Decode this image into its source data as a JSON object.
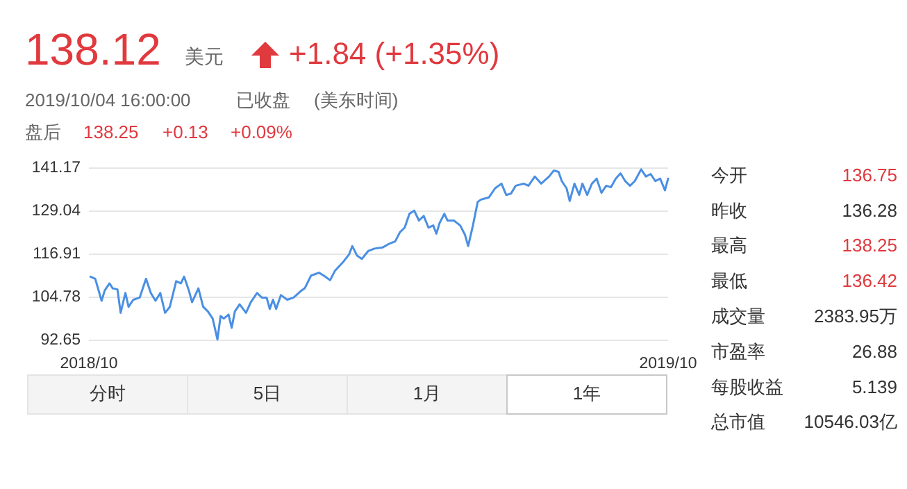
{
  "chart_data": {
    "type": "line",
    "color": "#4a8fe3",
    "x": [
      "2018-10-05",
      "2018-10-08",
      "2018-10-12",
      "2018-10-14",
      "2018-10-17",
      "2018-10-19",
      "2018-10-22",
      "2018-10-24",
      "2018-10-27",
      "2018-10-29",
      "2018-11-01",
      "2018-11-05",
      "2018-11-09",
      "2018-11-12",
      "2018-11-15",
      "2018-11-18",
      "2018-11-21",
      "2018-11-24",
      "2018-11-28",
      "2018-12-01",
      "2018-12-03",
      "2018-12-06",
      "2018-12-08",
      "2018-12-12",
      "2018-12-15",
      "2018-12-18",
      "2018-12-21",
      "2018-12-24",
      "2018-12-26",
      "2018-12-28",
      "2018-12-31",
      "2019-01-02",
      "2019-01-04",
      "2019-01-07",
      "2019-01-11",
      "2019-01-14",
      "2019-01-18",
      "2019-01-21",
      "2019-01-24",
      "2019-01-26",
      "2019-01-28",
      "2019-01-30",
      "2019-02-02",
      "2019-02-06",
      "2019-02-10",
      "2019-02-15",
      "2019-02-17",
      "2019-02-21",
      "2019-02-26",
      "2019-03-01",
      "2019-03-05",
      "2019-03-08",
      "2019-03-13",
      "2019-03-17",
      "2019-03-19",
      "2019-03-22",
      "2019-03-25",
      "2019-03-29",
      "2019-04-02",
      "2019-04-07",
      "2019-04-11",
      "2019-04-15",
      "2019-04-18",
      "2019-04-21",
      "2019-04-24",
      "2019-04-27",
      "2019-04-30",
      "2019-05-03",
      "2019-05-06",
      "2019-05-09",
      "2019-05-11",
      "2019-05-13",
      "2019-05-16",
      "2019-05-18",
      "2019-05-22",
      "2019-05-26",
      "2019-05-29",
      "2019-05-31",
      "2019-06-03",
      "2019-06-06",
      "2019-06-08",
      "2019-06-13",
      "2019-06-17",
      "2019-06-21",
      "2019-06-24",
      "2019-06-27",
      "2019-06-30",
      "2019-07-05",
      "2019-07-08",
      "2019-07-12",
      "2019-07-16",
      "2019-07-21",
      "2019-07-24",
      "2019-07-27",
      "2019-07-29",
      "2019-08-01",
      "2019-08-03",
      "2019-08-06",
      "2019-08-09",
      "2019-08-11",
      "2019-08-14",
      "2019-08-17",
      "2019-08-20",
      "2019-08-23",
      "2019-08-26",
      "2019-08-29",
      "2019-09-01",
      "2019-09-04",
      "2019-09-07",
      "2019-09-10",
      "2019-09-13",
      "2019-09-17",
      "2019-09-20",
      "2019-09-23",
      "2019-09-26",
      "2019-09-29",
      "2019-10-02",
      "2019-10-04"
    ],
    "values": [
      110.6,
      110.0,
      103.8,
      106.7,
      108.7,
      107.3,
      107.0,
      100.4,
      106.0,
      102.1,
      104.1,
      104.7,
      110.0,
      106.0,
      103.8,
      106.0,
      100.4,
      102.1,
      109.3,
      108.7,
      110.6,
      106.7,
      103.4,
      107.3,
      102.1,
      100.8,
      98.8,
      92.9,
      99.5,
      98.8,
      99.9,
      96.2,
      100.8,
      102.8,
      100.4,
      103.4,
      106.0,
      104.7,
      104.7,
      101.5,
      104.1,
      101.5,
      105.4,
      104.1,
      104.7,
      106.7,
      107.3,
      110.9,
      111.7,
      110.9,
      109.6,
      112.2,
      114.6,
      116.9,
      119.2,
      116.5,
      115.6,
      117.8,
      118.5,
      118.8,
      119.8,
      120.5,
      123.1,
      124.4,
      128.3,
      129.2,
      126.4,
      127.7,
      124.4,
      125.0,
      122.7,
      125.7,
      128.3,
      126.4,
      126.4,
      125.0,
      122.4,
      119.2,
      125.0,
      131.6,
      132.3,
      132.9,
      135.5,
      136.8,
      133.6,
      134.0,
      136.2,
      136.8,
      136.2,
      138.8,
      136.8,
      138.8,
      140.5,
      140.1,
      137.5,
      135.5,
      131.9,
      136.8,
      133.6,
      136.8,
      133.6,
      136.8,
      138.2,
      134.2,
      136.2,
      135.8,
      138.2,
      139.7,
      137.5,
      136.2,
      137.5,
      140.8,
      138.8,
      139.5,
      137.5,
      138.2,
      134.9,
      138.2
    ],
    "xlim": [
      "2018-10-04",
      "2019-10-04"
    ],
    "xticks": [
      {
        "value": "2018-10-04",
        "label": "2018/10"
      },
      {
        "value": "2019-10-04",
        "label": "2019/10"
      }
    ],
    "ylim": [
      92.65,
      141.17
    ],
    "yticks": [
      92.65,
      104.78,
      116.91,
      129.04,
      141.17
    ],
    "grid": "y",
    "annotations": [
      "138.12",
      "美元",
      "+1.84 (+1.35%)",
      "2019/10/04 16:00:00",
      "已收盘",
      "(美东时间)",
      "盘后",
      "138.25",
      "+0.13",
      "+0.09%",
      "今开",
      "136.75",
      "昨收",
      "136.28",
      "最高",
      "138.25",
      "最低",
      "136.42",
      "成交量",
      "2383.95万",
      "市盈率",
      "26.88",
      "每股收益",
      "5.139",
      "总市值",
      "10546.03亿",
      "分时",
      "5日",
      "1月",
      "1年"
    ]
  }
}
